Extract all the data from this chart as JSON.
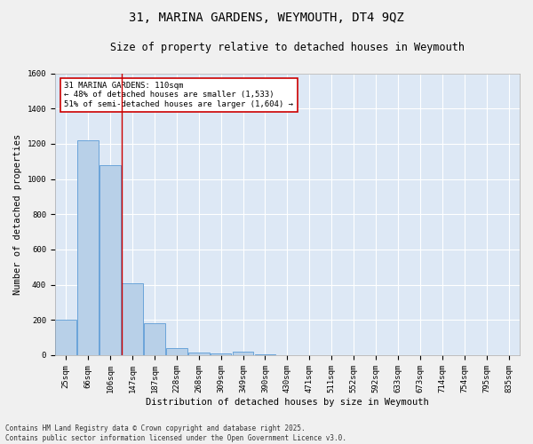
{
  "title_line1": "31, MARINA GARDENS, WEYMOUTH, DT4 9QZ",
  "title_line2": "Size of property relative to detached houses in Weymouth",
  "xlabel": "Distribution of detached houses by size in Weymouth",
  "ylabel": "Number of detached properties",
  "categories": [
    "25sqm",
    "66sqm",
    "106sqm",
    "147sqm",
    "187sqm",
    "228sqm",
    "268sqm",
    "309sqm",
    "349sqm",
    "390sqm",
    "430sqm",
    "471sqm",
    "511sqm",
    "552sqm",
    "592sqm",
    "633sqm",
    "673sqm",
    "714sqm",
    "754sqm",
    "795sqm",
    "835sqm"
  ],
  "values": [
    200,
    1220,
    1080,
    410,
    180,
    40,
    15,
    10,
    20,
    5,
    0,
    0,
    0,
    0,
    0,
    0,
    0,
    0,
    0,
    0,
    0
  ],
  "bar_color": "#b8d0e8",
  "bar_edge_color": "#5b9bd5",
  "background_color": "#dde8f5",
  "grid_color": "#ffffff",
  "red_line_x": 2.5,
  "annotation_box_text": "31 MARINA GARDENS: 110sqm\n← 48% of detached houses are smaller (1,533)\n51% of semi-detached houses are larger (1,604) →",
  "annotation_box_color": "#cc0000",
  "ylim": [
    0,
    1600
  ],
  "yticks": [
    0,
    200,
    400,
    600,
    800,
    1000,
    1200,
    1400,
    1600
  ],
  "footnote": "Contains HM Land Registry data © Crown copyright and database right 2025.\nContains public sector information licensed under the Open Government Licence v3.0.",
  "title_fontsize": 10,
  "subtitle_fontsize": 8.5,
  "axis_label_fontsize": 7.5,
  "tick_fontsize": 6.5,
  "annotation_fontsize": 6.5,
  "footnote_fontsize": 5.5
}
